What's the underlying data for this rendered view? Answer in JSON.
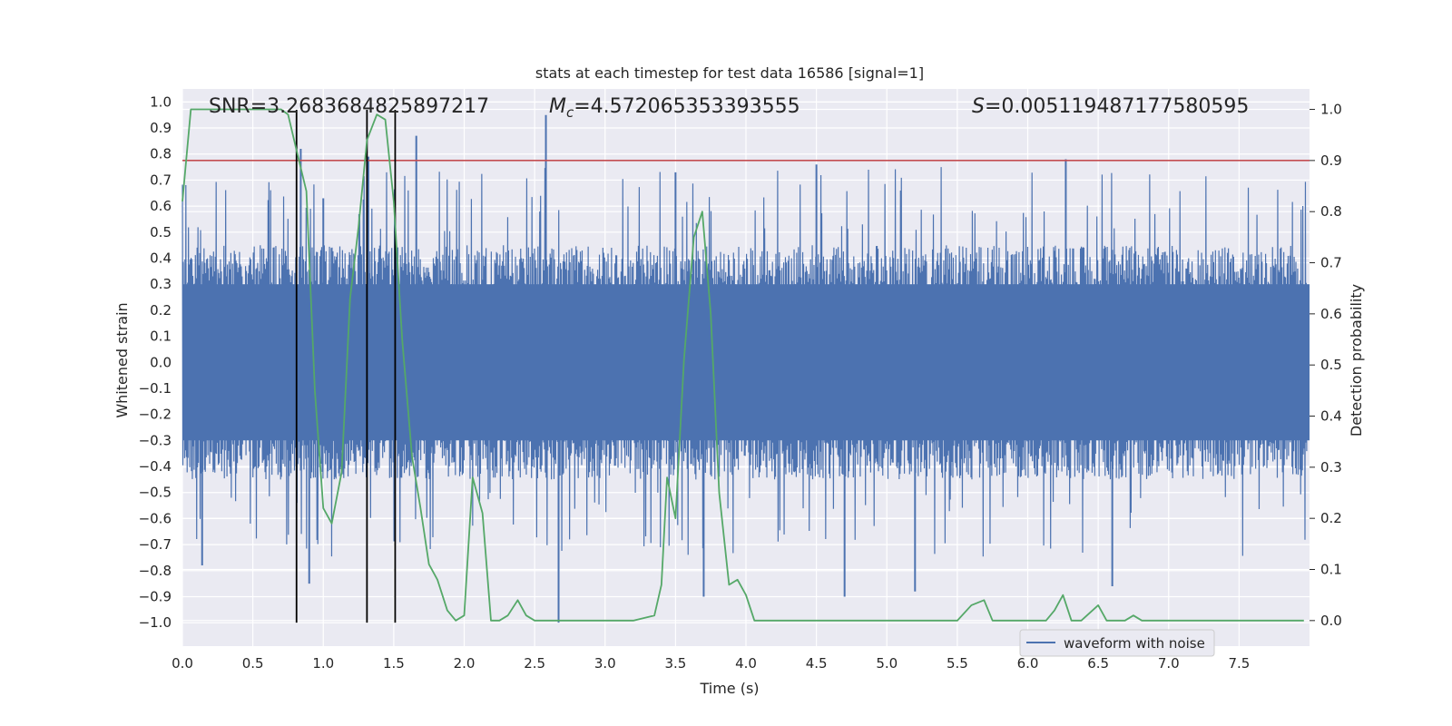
{
  "chart_data": {
    "type": "line",
    "title": "stats at each timestep for test data 16586 [signal=1]",
    "xlabel": "Time (s)",
    "ylabel_left": "Whitened strain",
    "ylabel_right": "Detection probability",
    "xlim": [
      0.0,
      8.0
    ],
    "ylim_left": [
      -1.09,
      1.05
    ],
    "ylim_right": [
      -0.05,
      1.04
    ],
    "xticks": [
      0.0,
      0.5,
      1.0,
      1.5,
      2.0,
      2.5,
      3.0,
      3.5,
      4.0,
      4.5,
      5.0,
      5.5,
      6.0,
      6.5,
      7.0,
      7.5
    ],
    "xtick_labels": [
      "0.0",
      "0.5",
      "1.0",
      "1.5",
      "2.0",
      "2.5",
      "3.0",
      "3.5",
      "4.0",
      "4.5",
      "5.0",
      "5.5",
      "6.0",
      "6.5",
      "7.0",
      "7.5"
    ],
    "yticks_left": [
      1.0,
      0.9,
      0.8,
      0.7,
      0.6,
      0.5,
      0.4,
      0.3,
      0.2,
      0.1,
      0.0,
      -0.1,
      -0.2,
      -0.3,
      -0.4,
      -0.5,
      -0.6,
      -0.7,
      -0.8,
      -0.9,
      -1.0
    ],
    "ytick_labels_left": [
      "1.0",
      "0.9",
      "0.8",
      "0.7",
      "0.6",
      "0.5",
      "0.4",
      "0.3",
      "0.2",
      "0.1",
      "0.0",
      "−0.1",
      "−0.2",
      "−0.3",
      "−0.4",
      "−0.5",
      "−0.6",
      "−0.7",
      "−0.8",
      "−0.9",
      "−1.0"
    ],
    "yticks_right": [
      1.0,
      0.9,
      0.8,
      0.7,
      0.6,
      0.5,
      0.4,
      0.3,
      0.2,
      0.1,
      0.0
    ],
    "ytick_labels_right": [
      "1.0",
      "0.9",
      "0.8",
      "0.7",
      "0.6",
      "0.5",
      "0.4",
      "0.3",
      "0.2",
      "0.1",
      "0.0"
    ],
    "annotations": {
      "snr": "SNR=3.2683684825897217",
      "mc_symbol": "M",
      "mc_sub": "c",
      "mc_value": "=4.572065353393555",
      "s_symbol": "S",
      "s_value": "=0.005119487177580595"
    },
    "series": [
      {
        "name": "waveform with noise",
        "axis": "left",
        "color": "#4c72b0",
        "kind": "dense noise, typical envelope about ±0.45 with spikes to about ±0.9",
        "noise_envelope": [
          -0.45,
          0.45
        ],
        "spikes": [
          {
            "x": 0.84,
            "y": 0.82
          },
          {
            "x": 1.0,
            "y": 0.63
          },
          {
            "x": 1.32,
            "y": 0.79
          },
          {
            "x": 1.66,
            "y": 0.87
          },
          {
            "x": 2.58,
            "y": 0.95
          },
          {
            "x": 3.5,
            "y": 0.73
          },
          {
            "x": 4.5,
            "y": 0.76
          },
          {
            "x": 6.27,
            "y": 0.78
          },
          {
            "x": 2.67,
            "y": -1.0
          },
          {
            "x": 3.7,
            "y": -0.9
          },
          {
            "x": 4.7,
            "y": -0.9
          },
          {
            "x": 5.2,
            "y": -0.88
          },
          {
            "x": 6.6,
            "y": -0.86
          },
          {
            "x": 0.9,
            "y": -0.85
          },
          {
            "x": 0.14,
            "y": -0.78
          }
        ]
      },
      {
        "name": "detection probability",
        "axis": "right",
        "color": "#55a868",
        "x": [
          0.0,
          0.06,
          0.12,
          0.2,
          0.3,
          0.4,
          0.5,
          0.6,
          0.7,
          0.75,
          0.81,
          0.88,
          0.94,
          1.0,
          1.06,
          1.13,
          1.19,
          1.25,
          1.31,
          1.38,
          1.44,
          1.5,
          1.56,
          1.63,
          1.69,
          1.75,
          1.81,
          1.88,
          1.94,
          2.0,
          2.06,
          2.13,
          2.19,
          2.25,
          2.31,
          2.38,
          2.44,
          2.5,
          2.6,
          2.8,
          3.0,
          3.2,
          3.35,
          3.4,
          3.44,
          3.5,
          3.56,
          3.63,
          3.69,
          3.75,
          3.81,
          3.88,
          3.94,
          4.0,
          4.06,
          4.2,
          4.5,
          4.7,
          4.8,
          5.0,
          5.5,
          5.6,
          5.69,
          5.75,
          5.9,
          6.0,
          6.13,
          6.19,
          6.25,
          6.31,
          6.38,
          6.5,
          6.56,
          6.63,
          6.69,
          6.75,
          6.81,
          7.0,
          7.5,
          7.9,
          7.96
        ],
        "y": [
          0.82,
          1.0,
          1.0,
          1.0,
          1.0,
          1.0,
          1.0,
          1.0,
          1.0,
          0.99,
          0.92,
          0.84,
          0.45,
          0.22,
          0.19,
          0.29,
          0.63,
          0.77,
          0.94,
          0.99,
          0.98,
          0.82,
          0.55,
          0.32,
          0.22,
          0.11,
          0.08,
          0.02,
          0.0,
          0.01,
          0.28,
          0.21,
          0.0,
          0.0,
          0.01,
          0.04,
          0.01,
          0.0,
          0.0,
          0.0,
          0.0,
          0.0,
          0.01,
          0.07,
          0.28,
          0.2,
          0.51,
          0.75,
          0.8,
          0.6,
          0.25,
          0.07,
          0.08,
          0.05,
          0.0,
          0.0,
          0.0,
          0.0,
          0.0,
          0.0,
          0.0,
          0.03,
          0.04,
          0.0,
          0.0,
          0.0,
          0.0,
          0.02,
          0.05,
          0.0,
          0.0,
          0.03,
          0.0,
          0.0,
          0.0,
          0.01,
          0.0,
          0.0,
          0.0,
          0.0,
          0.0
        ]
      }
    ],
    "threshold": {
      "axis": "right",
      "y": 0.9,
      "color": "#c44e52"
    },
    "vlines": [
      0.81,
      1.31,
      1.51
    ],
    "vline_range_left": [
      -1.0,
      0.97
    ],
    "legend": {
      "entries": [
        "waveform with noise"
      ],
      "placement": "lower-right"
    },
    "grid": true
  }
}
